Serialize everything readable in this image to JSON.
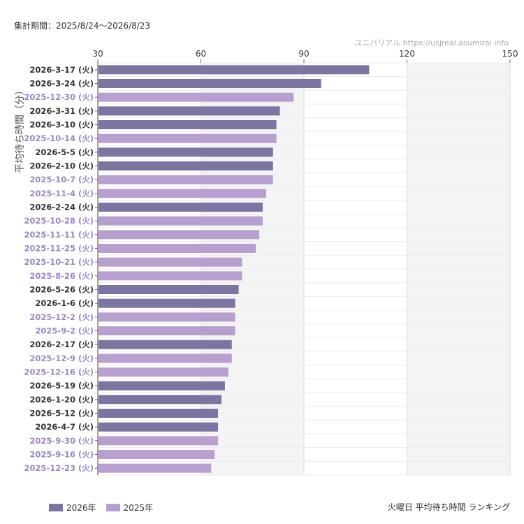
{
  "header": {
    "period_label": "集計期間：2025/8/24〜2026/8/23",
    "source_label": "ユニバリアル  https://usjreal.asumirai.info"
  },
  "footer": {
    "caption": "火曜日 平均待ち時間 ランキング"
  },
  "colors": {
    "series_2026": "#7b75a2",
    "series_2025": "#b7a0d0",
    "label_2026": "#333333",
    "label_2025": "#9a88c0",
    "band_shade": "#f4f4f4",
    "grid": "#dddddd"
  },
  "chart_data": {
    "type": "bar",
    "orientation": "horizontal",
    "ylabel": "平均待ち時間（分）",
    "xlim": [
      30,
      150
    ],
    "xticks": [
      30,
      60,
      90,
      120,
      150
    ],
    "legend_placement": "bottom-left",
    "series": [
      {
        "name": "2026年",
        "key": "2026"
      },
      {
        "name": "2025年",
        "key": "2025"
      }
    ],
    "categories": [
      "2026-3-17 (火)",
      "2026-3-24 (火)",
      "2025-12-30 (火)",
      "2026-3-31 (火)",
      "2026-3-10 (火)",
      "2025-10-14 (火)",
      "2026-5-5 (火)",
      "2026-2-10 (火)",
      "2025-10-7 (火)",
      "2025-11-4 (火)",
      "2026-2-24 (火)",
      "2025-10-28 (火)",
      "2025-11-11 (火)",
      "2025-11-25 (火)",
      "2025-10-21 (火)",
      "2025-8-26 (火)",
      "2026-5-26 (火)",
      "2026-1-6 (火)",
      "2025-12-2 (火)",
      "2025-9-2 (火)",
      "2026-2-17 (火)",
      "2025-12-9 (火)",
      "2025-12-16 (火)",
      "2026-5-19 (火)",
      "2026-1-20 (火)",
      "2026-5-12 (火)",
      "2026-4-7 (火)",
      "2025-9-30 (火)",
      "2025-9-16 (火)",
      "2025-12-23 (火)"
    ],
    "values": [
      109,
      95,
      87,
      83,
      82,
      82,
      81,
      81,
      81,
      79,
      78,
      78,
      77,
      76,
      72,
      72,
      71,
      70,
      70,
      70,
      69,
      69,
      68,
      67,
      66,
      65,
      65,
      65,
      64,
      63
    ],
    "year": [
      "2026",
      "2026",
      "2025",
      "2026",
      "2026",
      "2025",
      "2026",
      "2026",
      "2025",
      "2025",
      "2026",
      "2025",
      "2025",
      "2025",
      "2025",
      "2025",
      "2026",
      "2026",
      "2025",
      "2025",
      "2026",
      "2025",
      "2025",
      "2026",
      "2026",
      "2026",
      "2026",
      "2025",
      "2025",
      "2025"
    ]
  }
}
